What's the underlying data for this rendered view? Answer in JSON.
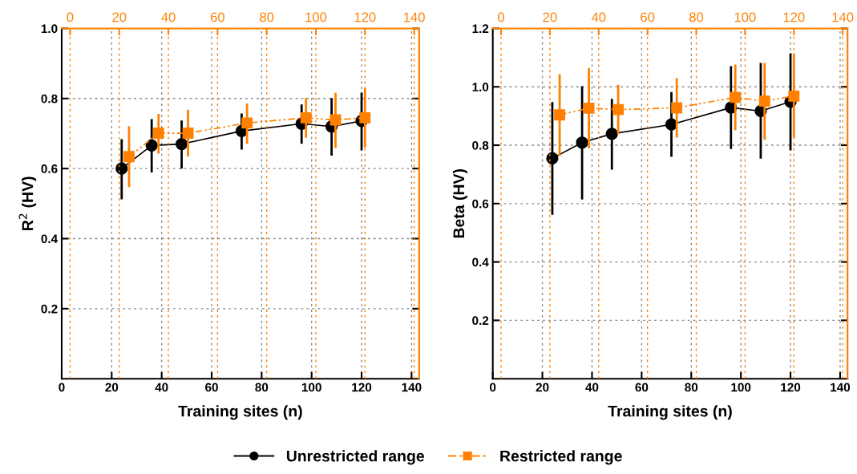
{
  "chart_data": [
    {
      "type": "line",
      "xlabel": "Training sites (n)",
      "ylabel": "R$^{2}$ (HV)",
      "xlim": [
        0,
        143
      ],
      "xticks": [
        0,
        20,
        40,
        60,
        80,
        100,
        120,
        140
      ],
      "x2lim": [
        -3.4,
        142
      ],
      "x2ticks": [
        0,
        20,
        40,
        60,
        80,
        100,
        120,
        140
      ],
      "ylim": [
        0,
        1.0
      ],
      "yticks": [
        {
          "value": 0.2,
          "label": "0.2"
        },
        {
          "value": 0.4,
          "label": "0.4"
        },
        {
          "value": 0.6,
          "label": "0.6"
        },
        {
          "value": 0.8,
          "label": "0.8"
        },
        {
          "value": 1.0,
          "label": "1.0"
        }
      ],
      "grid": true,
      "legend": "bottom",
      "series": [
        {
          "name": "Unrestricted range",
          "color": "#000000",
          "marker": "circle",
          "line_style": "solid",
          "x": [
            24,
            36,
            48,
            72,
            96,
            108,
            120
          ],
          "values": [
            0.6,
            0.666,
            0.67,
            0.707,
            0.728,
            0.72,
            0.736
          ],
          "errors": [
            [
              0.512,
              0.684
            ],
            [
              0.589,
              0.741
            ],
            [
              0.6,
              0.737
            ],
            [
              0.654,
              0.757
            ],
            [
              0.671,
              0.783
            ],
            [
              0.637,
              0.801
            ],
            [
              0.652,
              0.817
            ]
          ]
        },
        {
          "name": "Restricted range",
          "color": "#ff8000",
          "marker": "square",
          "line_style": "dashed",
          "axis": "x2",
          "x": [
            24,
            36,
            48,
            72,
            96,
            108,
            120
          ],
          "values": [
            0.634,
            0.701,
            0.701,
            0.73,
            0.745,
            0.739,
            0.745
          ],
          "errors": [
            [
              0.547,
              0.721
            ],
            [
              0.643,
              0.756
            ],
            [
              0.634,
              0.768
            ],
            [
              0.671,
              0.786
            ],
            [
              0.688,
              0.802
            ],
            [
              0.659,
              0.816
            ],
            [
              0.66,
              0.829
            ]
          ]
        }
      ]
    },
    {
      "type": "line",
      "xlabel": "Training sites (n)",
      "ylabel": "Beta (HV)",
      "xlim": [
        0,
        143
      ],
      "xticks": [
        0,
        20,
        40,
        60,
        80,
        100,
        120,
        140
      ],
      "x2lim": [
        -3.4,
        142
      ],
      "x2ticks": [
        0,
        20,
        40,
        60,
        80,
        100,
        120,
        140
      ],
      "ylim": [
        0,
        1.2
      ],
      "yticks": [
        {
          "value": 0.2,
          "label": "0.2"
        },
        {
          "value": 0.4,
          "label": "0.4"
        },
        {
          "value": 0.6,
          "label": "0.6"
        },
        {
          "value": 0.8,
          "label": "0.8"
        },
        {
          "value": 1.0,
          "label": "1.0"
        },
        {
          "value": 1.2,
          "label": "1.2"
        }
      ],
      "grid": true,
      "series": [
        {
          "color": "#000000",
          "marker": "circle",
          "line_style": "solid",
          "x": [
            24,
            36,
            48,
            72,
            96,
            108,
            120
          ],
          "values": [
            0.755,
            0.809,
            0.839,
            0.871,
            0.929,
            0.917,
            0.949
          ],
          "errors": [
            [
              0.562,
              0.948
            ],
            [
              0.614,
              1.002
            ],
            [
              0.716,
              0.959
            ],
            [
              0.76,
              0.982
            ],
            [
              0.787,
              1.071
            ],
            [
              0.754,
              1.082
            ],
            [
              0.782,
              1.115
            ]
          ]
        },
        {
          "color": "#ff8000",
          "marker": "square",
          "line_style": "dashed",
          "axis": "x2",
          "x": [
            24,
            36,
            48,
            72,
            96,
            108,
            120
          ],
          "values": [
            0.904,
            0.927,
            0.922,
            0.928,
            0.964,
            0.951,
            0.968
          ],
          "errors": [
            [
              0.763,
              1.043
            ],
            [
              0.789,
              1.064
            ],
            [
              0.838,
              1.007
            ],
            [
              0.826,
              1.03
            ],
            [
              0.851,
              1.076
            ],
            [
              0.819,
              1.082
            ],
            [
              0.826,
              1.115
            ]
          ]
        }
      ]
    }
  ]
}
